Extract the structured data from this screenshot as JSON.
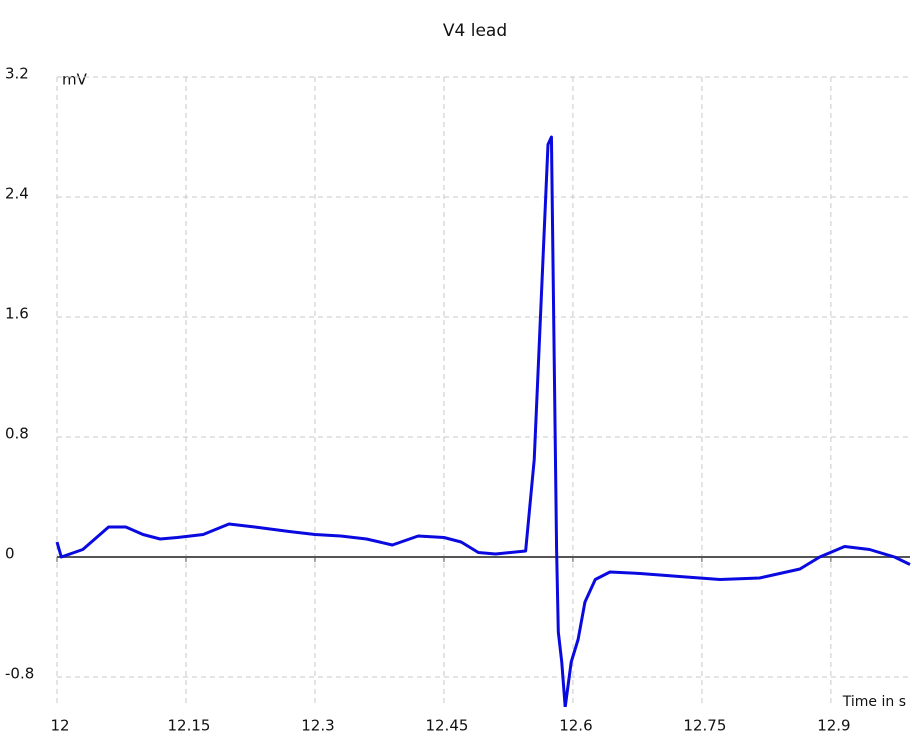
{
  "chart_data": {
    "type": "line",
    "title": "V4 lead",
    "y_unit": "mV",
    "x_label": "Time in s",
    "x": [
      12.0,
      12.005,
      12.03,
      12.06,
      12.08,
      12.1,
      12.12,
      12.14,
      12.17,
      12.2,
      12.23,
      12.27,
      12.3,
      12.33,
      12.36,
      12.39,
      12.42,
      12.45,
      12.47,
      12.49,
      12.51,
      12.545,
      12.555,
      12.571,
      12.575,
      12.581,
      12.583,
      12.587,
      12.591,
      12.598,
      12.606,
      12.614,
      12.626,
      12.643,
      12.678,
      12.724,
      12.771,
      12.817,
      12.864,
      12.887,
      12.916,
      12.945,
      12.974,
      12.992
    ],
    "series": [
      {
        "name": "V4",
        "color": "#0a0ae0",
        "values": [
          0.1,
          0.0,
          0.05,
          0.2,
          0.2,
          0.15,
          0.12,
          0.13,
          0.15,
          0.22,
          0.2,
          0.17,
          0.15,
          0.14,
          0.12,
          0.08,
          0.14,
          0.13,
          0.1,
          0.03,
          0.02,
          0.04,
          0.65,
          2.75,
          2.8,
          0.05,
          -0.5,
          -0.7,
          -1.0,
          -0.7,
          -0.55,
          -0.3,
          -0.15,
          -0.1,
          -0.11,
          -0.13,
          -0.15,
          -0.14,
          -0.08,
          0.0,
          0.07,
          0.05,
          0.0,
          -0.05
        ]
      }
    ],
    "xlim": [
      12,
      12.992
    ],
    "xticks": [
      12,
      12.15,
      12.3,
      12.45,
      12.6,
      12.75,
      12.9
    ],
    "ylim": [
      -1,
      3.2
    ],
    "yticks": [
      -0.8,
      0,
      0.8,
      1.6,
      2.4,
      3.2
    ],
    "grid": true
  }
}
